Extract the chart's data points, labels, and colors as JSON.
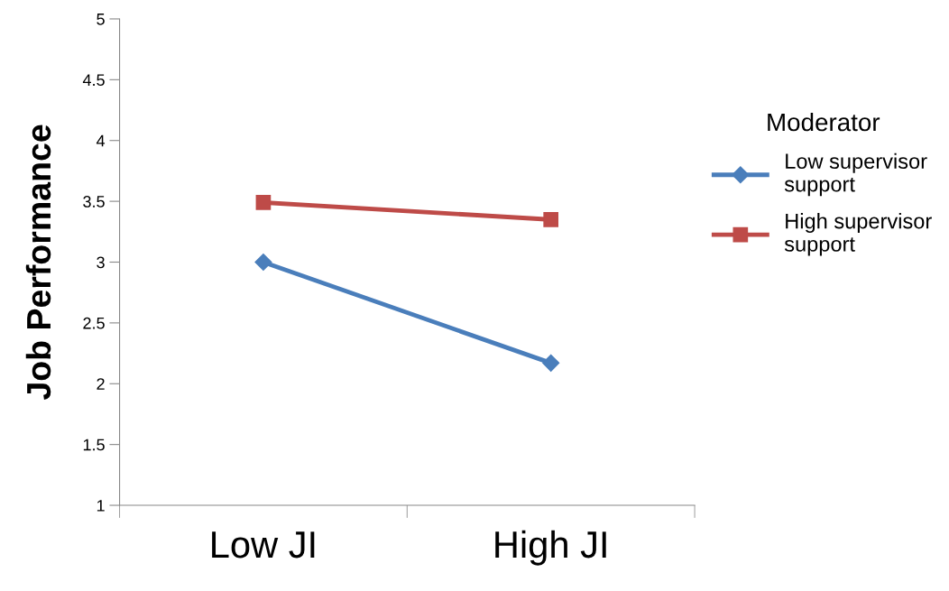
{
  "chart_data": {
    "type": "line",
    "ylabel": "Job Performance",
    "legend_title": "Moderator",
    "categories": [
      "Low JI",
      "High JI"
    ],
    "series": [
      {
        "name": "Low supervisor\nsupport",
        "color": "#4a7ebb",
        "values": [
          3.0,
          2.17
        ],
        "marker": "diamond"
      },
      {
        "name": "High supervisor\nsupport",
        "color": "#be4b48",
        "values": [
          3.49,
          3.35
        ],
        "marker": "square"
      }
    ],
    "ylim": [
      1,
      5
    ],
    "yticks": [
      1,
      1.5,
      2,
      2.5,
      3,
      3.5,
      4,
      4.5,
      5
    ],
    "grid": false,
    "legend": "right",
    "line_style": "solid"
  }
}
